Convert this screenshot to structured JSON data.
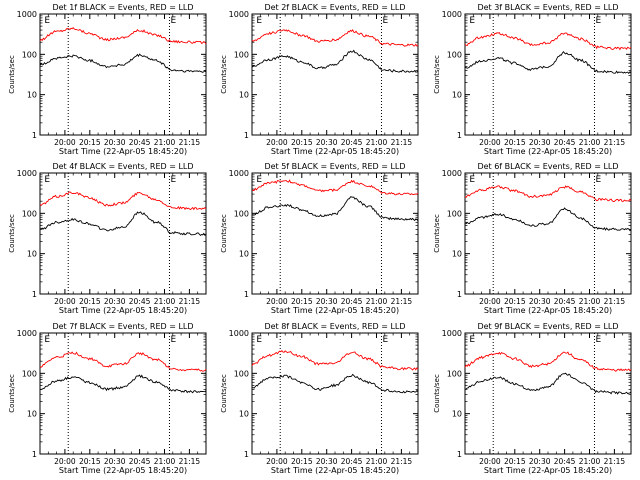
{
  "common": {
    "xlabel": "Start Time (22-Apr-05 18:45:20)",
    "ylabel": "Counts/sec",
    "x_ticks": [
      "20:00",
      "20:15",
      "20:30",
      "20:45",
      "21:00",
      "21:15"
    ],
    "y_ticks": [
      "1",
      "10",
      "100",
      "1000"
    ],
    "markers": [
      "E",
      "E"
    ],
    "colors": {
      "events": "#000000",
      "lld": "#ff0000"
    }
  },
  "chart_data": [
    {
      "type": "line",
      "title": "Det 1f BLACK = Events, RED = LLD",
      "y_scale": "log",
      "ylim": [
        1,
        1000
      ],
      "xlim": [
        "19:45",
        "21:25"
      ],
      "x_tick_values": [
        "20:00",
        "20:15",
        "20:30",
        "20:45",
        "21:00",
        "21:15"
      ],
      "dotted_lines_at": [
        "20:02",
        "21:03"
      ],
      "marker_text_at": [
        "19:47",
        "21:03"
      ],
      "series": [
        {
          "color": "red",
          "x": [
            "19:45",
            "19:55",
            "20:05",
            "20:15",
            "20:25",
            "20:35",
            "20:45",
            "20:55",
            "21:05",
            "21:15",
            "21:25"
          ],
          "values": [
            230,
            370,
            440,
            330,
            230,
            260,
            390,
            300,
            210,
            200,
            195
          ]
        },
        {
          "color": "black",
          "x": [
            "19:45",
            "19:55",
            "20:05",
            "20:15",
            "20:25",
            "20:35",
            "20:45",
            "20:55",
            "21:05",
            "21:15",
            "21:25"
          ],
          "values": [
            55,
            80,
            90,
            70,
            50,
            55,
            95,
            70,
            40,
            38,
            38
          ]
        }
      ]
    },
    {
      "type": "line",
      "title": "Det 2f BLACK = Events, RED = LLD",
      "y_scale": "log",
      "ylim": [
        1,
        1000
      ],
      "xlim": [
        "19:45",
        "21:25"
      ],
      "x_tick_values": [
        "20:00",
        "20:15",
        "20:30",
        "20:45",
        "21:00",
        "21:15"
      ],
      "dotted_lines_at": [
        "20:02",
        "21:03"
      ],
      "marker_text_at": [
        "19:47",
        "21:03"
      ],
      "series": [
        {
          "color": "red",
          "x": [
            "19:45",
            "19:55",
            "20:05",
            "20:15",
            "20:25",
            "20:35",
            "20:45",
            "20:55",
            "21:05",
            "21:15",
            "21:25"
          ],
          "values": [
            210,
            330,
            400,
            300,
            210,
            230,
            380,
            280,
            180,
            170,
            170
          ]
        },
        {
          "color": "black",
          "x": [
            "19:45",
            "19:55",
            "20:05",
            "20:15",
            "20:25",
            "20:35",
            "20:45",
            "20:55",
            "21:05",
            "21:15",
            "21:25"
          ],
          "values": [
            50,
            75,
            90,
            65,
            45,
            55,
            120,
            75,
            40,
            38,
            38
          ]
        }
      ]
    },
    {
      "type": "line",
      "title": "Det 3f BLACK = Events, RED = LLD",
      "y_scale": "log",
      "ylim": [
        1,
        1000
      ],
      "xlim": [
        "19:45",
        "21:25"
      ],
      "x_tick_values": [
        "20:00",
        "20:15",
        "20:30",
        "20:45",
        "21:00",
        "21:15"
      ],
      "dotted_lines_at": [
        "20:02",
        "21:03"
      ],
      "marker_text_at": [
        "19:47",
        "21:03"
      ],
      "series": [
        {
          "color": "red",
          "x": [
            "19:45",
            "19:55",
            "20:05",
            "20:15",
            "20:25",
            "20:35",
            "20:45",
            "20:55",
            "21:05",
            "21:15",
            "21:25"
          ],
          "values": [
            170,
            270,
            330,
            250,
            170,
            190,
            330,
            240,
            150,
            140,
            140
          ]
        },
        {
          "color": "black",
          "x": [
            "19:45",
            "19:55",
            "20:05",
            "20:15",
            "20:25",
            "20:35",
            "20:45",
            "20:55",
            "21:05",
            "21:15",
            "21:25"
          ],
          "values": [
            45,
            70,
            80,
            60,
            42,
            50,
            110,
            70,
            38,
            36,
            36
          ]
        }
      ]
    },
    {
      "type": "line",
      "title": "Det 4f BLACK = Events, RED = LLD",
      "y_scale": "log",
      "ylim": [
        1,
        1000
      ],
      "xlim": [
        "19:45",
        "21:25"
      ],
      "x_tick_values": [
        "20:00",
        "20:15",
        "20:30",
        "20:45",
        "21:00",
        "21:15"
      ],
      "dotted_lines_at": [
        "20:02",
        "21:03"
      ],
      "marker_text_at": [
        "19:47",
        "21:03"
      ],
      "series": [
        {
          "color": "red",
          "x": [
            "19:45",
            "19:55",
            "20:05",
            "20:15",
            "20:25",
            "20:35",
            "20:45",
            "20:55",
            "21:05",
            "21:15",
            "21:25"
          ],
          "values": [
            160,
            260,
            330,
            240,
            160,
            180,
            320,
            220,
            140,
            130,
            130
          ]
        },
        {
          "color": "black",
          "x": [
            "19:45",
            "19:55",
            "20:05",
            "20:15",
            "20:25",
            "20:35",
            "20:45",
            "20:55",
            "21:05",
            "21:15",
            "21:25"
          ],
          "values": [
            40,
            60,
            70,
            55,
            38,
            45,
            105,
            60,
            33,
            31,
            30
          ]
        }
      ]
    },
    {
      "type": "line",
      "title": "Det 5f BLACK = Events, RED = LLD",
      "y_scale": "log",
      "ylim": [
        1,
        1000
      ],
      "xlim": [
        "19:45",
        "21:25"
      ],
      "x_tick_values": [
        "20:00",
        "20:15",
        "20:30",
        "20:45",
        "21:00",
        "21:15"
      ],
      "dotted_lines_at": [
        "20:02",
        "21:03"
      ],
      "marker_text_at": [
        "19:47",
        "21:03"
      ],
      "series": [
        {
          "color": "red",
          "x": [
            "19:45",
            "19:55",
            "20:05",
            "20:15",
            "20:25",
            "20:35",
            "20:45",
            "20:55",
            "21:05",
            "21:15",
            "21:25"
          ],
          "values": [
            380,
            560,
            650,
            500,
            360,
            380,
            620,
            480,
            320,
            300,
            300
          ]
        },
        {
          "color": "black",
          "x": [
            "19:45",
            "19:55",
            "20:05",
            "20:15",
            "20:25",
            "20:35",
            "20:45",
            "20:55",
            "21:05",
            "21:15",
            "21:25"
          ],
          "values": [
            90,
            140,
            160,
            125,
            85,
            95,
            250,
            150,
            75,
            72,
            70
          ]
        }
      ]
    },
    {
      "type": "line",
      "title": "Det 6f BLACK = Events, RED = LLD",
      "y_scale": "log",
      "ylim": [
        1,
        1000
      ],
      "xlim": [
        "19:45",
        "21:25"
      ],
      "x_tick_values": [
        "20:00",
        "20:15",
        "20:30",
        "20:45",
        "21:00",
        "21:15"
      ],
      "dotted_lines_at": [
        "20:02",
        "21:03"
      ],
      "marker_text_at": [
        "19:47",
        "21:03"
      ],
      "series": [
        {
          "color": "red",
          "x": [
            "19:45",
            "19:55",
            "20:05",
            "20:15",
            "20:25",
            "20:35",
            "20:45",
            "20:55",
            "21:05",
            "21:15",
            "21:25"
          ],
          "values": [
            260,
            380,
            460,
            360,
            260,
            280,
            450,
            340,
            220,
            210,
            210
          ]
        },
        {
          "color": "black",
          "x": [
            "19:45",
            "19:55",
            "20:05",
            "20:15",
            "20:25",
            "20:35",
            "20:45",
            "20:55",
            "21:05",
            "21:15",
            "21:25"
          ],
          "values": [
            55,
            80,
            95,
            70,
            50,
            55,
            130,
            75,
            42,
            40,
            40
          ]
        }
      ]
    },
    {
      "type": "line",
      "title": "Det 7f BLACK = Events, RED = LLD",
      "y_scale": "log",
      "ylim": [
        1,
        1000
      ],
      "xlim": [
        "19:45",
        "21:25"
      ],
      "x_tick_values": [
        "20:00",
        "20:15",
        "20:30",
        "20:45",
        "21:00",
        "21:15"
      ],
      "dotted_lines_at": [
        "20:02",
        "21:03"
      ],
      "marker_text_at": [
        "19:47",
        "21:03"
      ],
      "series": [
        {
          "color": "red",
          "x": [
            "19:45",
            "19:55",
            "20:05",
            "20:15",
            "20:25",
            "20:35",
            "20:45",
            "20:55",
            "21:05",
            "21:15",
            "21:25"
          ],
          "values": [
            150,
            250,
            320,
            230,
            150,
            170,
            310,
            220,
            130,
            120,
            120
          ]
        },
        {
          "color": "black",
          "x": [
            "19:45",
            "19:55",
            "20:05",
            "20:15",
            "20:25",
            "20:35",
            "20:45",
            "20:55",
            "21:05",
            "21:15",
            "21:25"
          ],
          "values": [
            40,
            65,
            80,
            60,
            40,
            45,
            85,
            60,
            38,
            35,
            35
          ]
        }
      ]
    },
    {
      "type": "line",
      "title": "Det 8f BLACK = Events, RED = LLD",
      "y_scale": "log",
      "ylim": [
        1,
        1000
      ],
      "xlim": [
        "19:45",
        "21:25"
      ],
      "x_tick_values": [
        "20:00",
        "20:15",
        "20:30",
        "20:45",
        "21:00",
        "21:15"
      ],
      "dotted_lines_at": [
        "20:02",
        "21:03"
      ],
      "marker_text_at": [
        "19:47",
        "21:03"
      ],
      "series": [
        {
          "color": "red",
          "x": [
            "19:45",
            "19:55",
            "20:05",
            "20:15",
            "20:25",
            "20:35",
            "20:45",
            "20:55",
            "21:05",
            "21:15",
            "21:25"
          ],
          "values": [
            160,
            280,
            350,
            260,
            170,
            180,
            330,
            230,
            140,
            130,
            130
          ]
        },
        {
          "color": "black",
          "x": [
            "19:45",
            "19:55",
            "20:05",
            "20:15",
            "20:25",
            "20:35",
            "20:45",
            "20:55",
            "21:05",
            "21:15",
            "21:25"
          ],
          "values": [
            45,
            75,
            85,
            60,
            40,
            50,
            90,
            60,
            38,
            35,
            35
          ]
        }
      ]
    },
    {
      "type": "line",
      "title": "Det 9f BLACK = Events, RED = LLD",
      "y_scale": "log",
      "ylim": [
        1,
        1000
      ],
      "xlim": [
        "19:45",
        "21:25"
      ],
      "x_tick_values": [
        "20:00",
        "20:15",
        "20:30",
        "20:45",
        "21:00",
        "21:15"
      ],
      "dotted_lines_at": [
        "20:02",
        "21:03"
      ],
      "marker_text_at": [
        "19:47",
        "21:03"
      ],
      "series": [
        {
          "color": "red",
          "x": [
            "19:45",
            "19:55",
            "20:05",
            "20:15",
            "20:25",
            "20:35",
            "20:45",
            "20:55",
            "21:05",
            "21:15",
            "21:25"
          ],
          "values": [
            150,
            250,
            320,
            230,
            150,
            170,
            330,
            210,
            130,
            120,
            120
          ]
        },
        {
          "color": "black",
          "x": [
            "19:45",
            "19:55",
            "20:05",
            "20:15",
            "20:25",
            "20:35",
            "20:45",
            "20:55",
            "21:05",
            "21:15",
            "21:25"
          ],
          "values": [
            42,
            65,
            80,
            55,
            38,
            45,
            100,
            60,
            35,
            33,
            33
          ]
        }
      ]
    }
  ]
}
